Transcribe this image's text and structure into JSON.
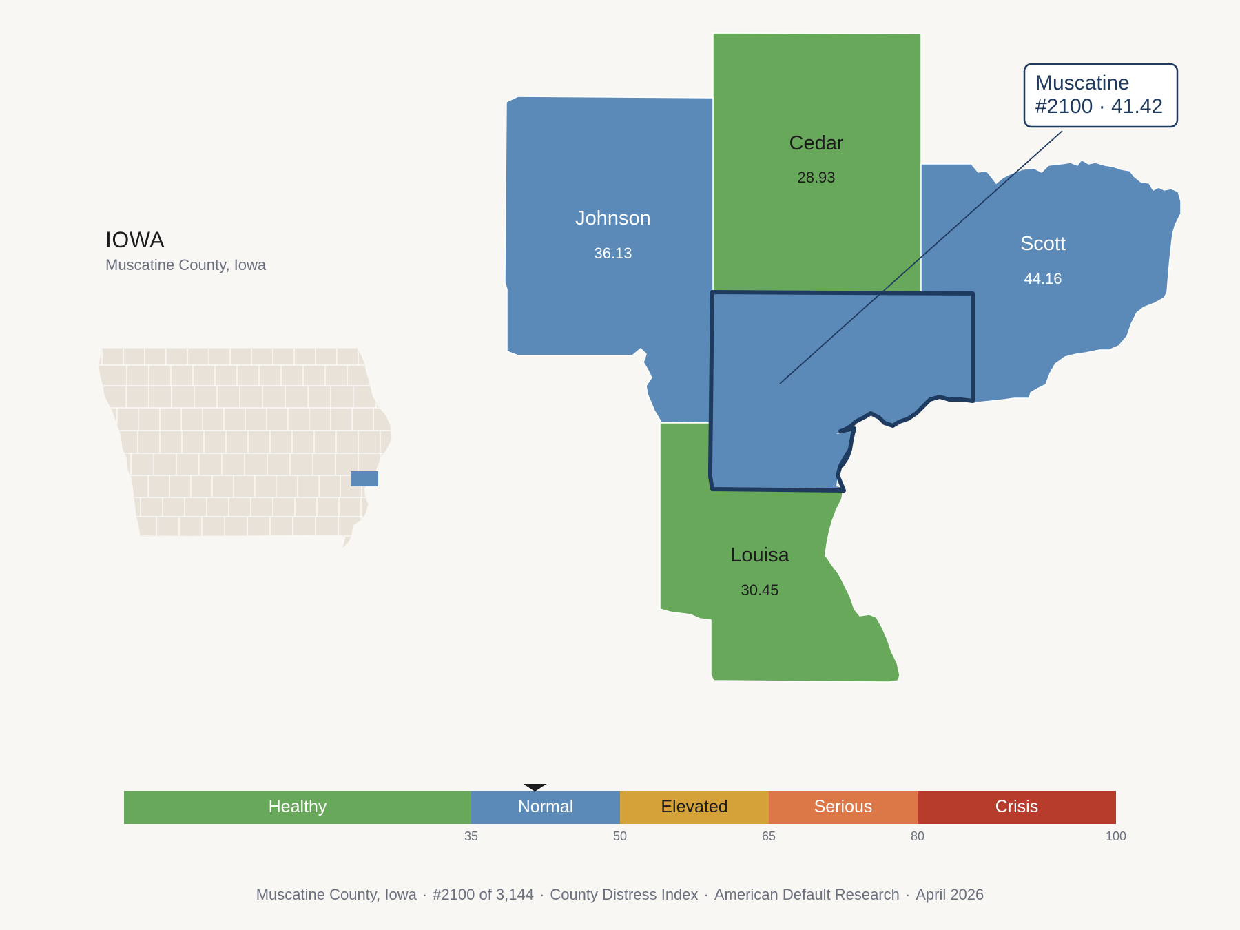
{
  "header": {
    "state": "IOWA",
    "subtitle": "Muscatine County, Iowa"
  },
  "map": {
    "counties": [
      {
        "name": "Cedar",
        "value": "28.93",
        "category": "Healthy"
      },
      {
        "name": "Johnson",
        "value": "36.13",
        "category": "Normal"
      },
      {
        "name": "Scott",
        "value": "44.16",
        "category": "Normal"
      },
      {
        "name": "Louisa",
        "value": "30.45",
        "category": "Healthy"
      },
      {
        "name": "Muscatine",
        "value": "41.42",
        "category": "Normal",
        "selected": true
      }
    ],
    "callout": {
      "line1": "Muscatine",
      "line2": "#2100 · 41.42"
    },
    "inset": {
      "highlighted_county": "Muscatine"
    }
  },
  "legend": {
    "pointer_value": 41.42,
    "bands": [
      {
        "label": "Healthy",
        "from": 0,
        "to": 35,
        "color": "#67a85a",
        "text_color": "#ffffff"
      },
      {
        "label": "Normal",
        "from": 35,
        "to": 50,
        "color": "#5b89b8",
        "text_color": "#ffffff"
      },
      {
        "label": "Elevated",
        "from": 50,
        "to": 65,
        "color": "#d5a23a",
        "text_color": "#1c1c1c"
      },
      {
        "label": "Serious",
        "from": 65,
        "to": 80,
        "color": "#dc7748",
        "text_color": "#ffffff"
      },
      {
        "label": "Crisis",
        "from": 80,
        "to": 100,
        "color": "#b83c2b",
        "text_color": "#ffffff"
      }
    ],
    "ticks": [
      "35",
      "50",
      "65",
      "80",
      "100"
    ]
  },
  "colors": {
    "healthy": "#67a85a",
    "normal": "#5b89b8",
    "selected_outline": "#1f3a5f",
    "inset_fill": "#e8e2d8",
    "background": "#f9f7f4"
  },
  "footer": {
    "county": "Muscatine County, Iowa",
    "rank": "#2100 of 3,144",
    "index": "County Distress Index",
    "source": "American Default Research",
    "date": "April 2026"
  }
}
